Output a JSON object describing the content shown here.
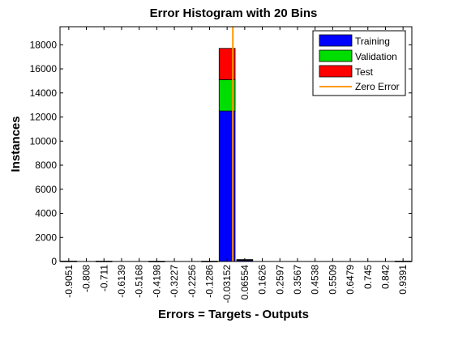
{
  "chart_data": {
    "type": "bar",
    "title": "Error Histogram with 20 Bins",
    "xlabel": "Errors = Targets - Outputs",
    "ylabel": "Instances",
    "ylim": [
      0,
      19500
    ],
    "yticks": [
      0,
      2000,
      4000,
      6000,
      8000,
      10000,
      12000,
      14000,
      16000,
      18000
    ],
    "categories": [
      "-0.9051",
      "-0.808",
      "-0.711",
      "-0.6139",
      "-0.5168",
      "-0.4198",
      "-0.3227",
      "-0.2256",
      "-0.1286",
      "-0.03152",
      "0.06554",
      "0.1626",
      "0.2597",
      "0.3567",
      "0.4538",
      "0.5509",
      "0.6479",
      "0.745",
      "0.842",
      "0.9391"
    ],
    "stacked": true,
    "series": [
      {
        "name": "Training",
        "color": "#0000ff",
        "values": [
          30,
          0,
          25,
          0,
          0,
          15,
          0,
          0,
          20,
          12500,
          120,
          0,
          0,
          0,
          0,
          0,
          0,
          0,
          0,
          25
        ]
      },
      {
        "name": "Validation",
        "color": "#00dd00",
        "values": [
          0,
          0,
          0,
          0,
          0,
          0,
          0,
          0,
          0,
          2600,
          20,
          0,
          0,
          0,
          0,
          0,
          0,
          0,
          0,
          0
        ]
      },
      {
        "name": "Test",
        "color": "#ff0000",
        "values": [
          0,
          0,
          0,
          0,
          0,
          0,
          0,
          0,
          0,
          2600,
          20,
          0,
          0,
          0,
          0,
          0,
          0,
          0,
          0,
          0
        ]
      }
    ],
    "zero_error": {
      "name": "Zero Error",
      "color": "#ff9900",
      "x": 0
    },
    "legend_position": "top-right",
    "grid": false
  }
}
